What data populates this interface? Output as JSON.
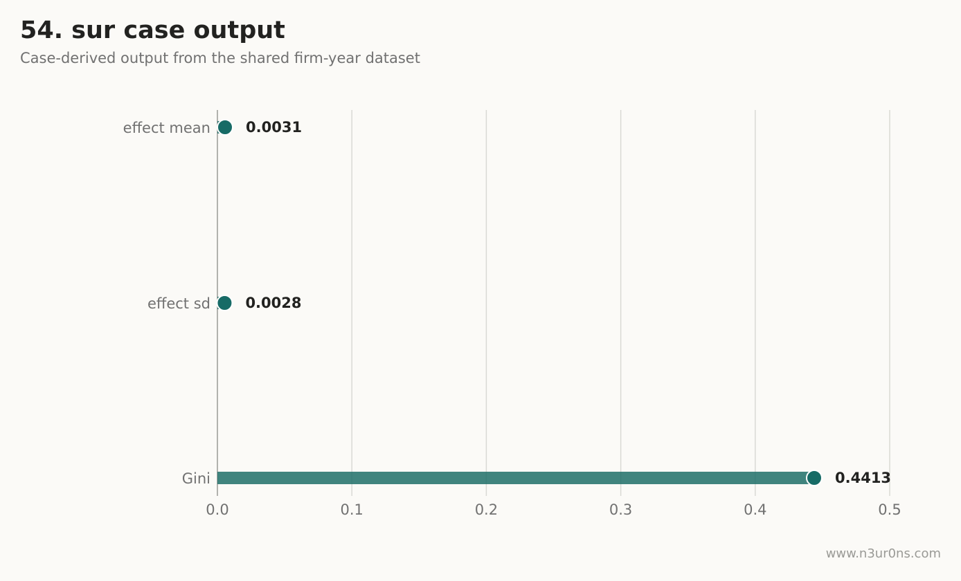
{
  "header": {
    "title": "54. sur case output",
    "subtitle": "Case-derived output from the shared firm-year dataset"
  },
  "footer": {
    "credit": "www.n3ur0ns.com"
  },
  "colors": {
    "bar": "#1f6e68",
    "dot": "#176b66",
    "grid": "#d9d9d4",
    "axis": "#9a9a96"
  },
  "chart_data": {
    "type": "bar",
    "orientation": "horizontal",
    "categories": [
      "effect mean",
      "effect sd",
      "Gini"
    ],
    "values": [
      0.0031,
      0.0028,
      0.4413
    ],
    "value_labels": [
      "0.0031",
      "0.0028",
      "0.4413"
    ],
    "xlim": [
      0,
      0.5
    ],
    "xticks": [
      0.0,
      0.1,
      0.2,
      0.3,
      0.4,
      0.5
    ],
    "xtick_labels": [
      "0.0",
      "0.1",
      "0.2",
      "0.3",
      "0.4",
      "0.5"
    ],
    "grid": true,
    "legend": "none"
  }
}
